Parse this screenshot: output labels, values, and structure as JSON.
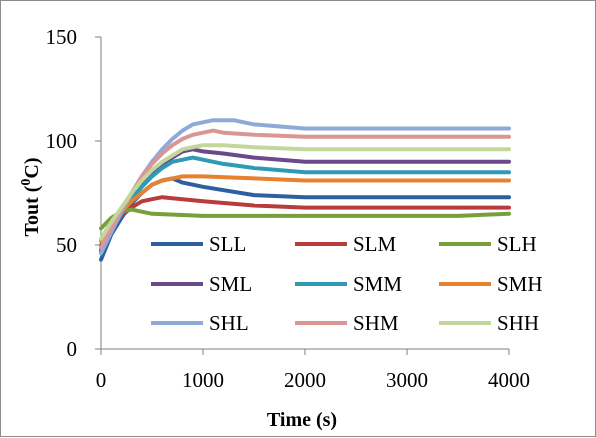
{
  "chart_data": {
    "type": "line",
    "xlabel": "Time (s)",
    "ylabel_main": "Tout (",
    "ylabel_sup": "0",
    "ylabel_end": "C)",
    "xlim": [
      0,
      4000
    ],
    "ylim": [
      0,
      150
    ],
    "xticks": [
      0,
      1000,
      2000,
      3000,
      4000
    ],
    "yticks": [
      0,
      50,
      100,
      150
    ],
    "grid": false,
    "legend_position": "lower-center",
    "series": [
      {
        "name": "SLL",
        "color": "#2e5f9f",
        "x": [
          0,
          100,
          200,
          300,
          400,
          500,
          600,
          700,
          800,
          1000,
          1500,
          2000,
          2500,
          3000,
          3500,
          4000
        ],
        "y": [
          43,
          55,
          63,
          70,
          75,
          79,
          81,
          82,
          80,
          78,
          74,
          73,
          73,
          73,
          73,
          73
        ]
      },
      {
        "name": "SLM",
        "color": "#b83c3a",
        "x": [
          0,
          100,
          200,
          300,
          400,
          500,
          600,
          800,
          1000,
          1500,
          2000,
          2500,
          3000,
          3500,
          4000
        ],
        "y": [
          50,
          58,
          64,
          68,
          71,
          72,
          73,
          72,
          71,
          69,
          68,
          68,
          68,
          68,
          68
        ]
      },
      {
        "name": "SLH",
        "color": "#77a03a",
        "x": [
          0,
          100,
          200,
          300,
          400,
          500,
          1000,
          1500,
          2000,
          2500,
          3000,
          3500,
          4000
        ],
        "y": [
          58,
          63,
          66,
          67,
          66,
          65,
          64,
          64,
          64,
          64,
          64,
          64,
          65
        ]
      },
      {
        "name": "SML",
        "color": "#6a4a8c",
        "x": [
          0,
          100,
          200,
          300,
          400,
          500,
          600,
          700,
          800,
          900,
          1000,
          1200,
          1500,
          2000,
          2500,
          3000,
          3500,
          4000
        ],
        "y": [
          47,
          56,
          65,
          73,
          79,
          85,
          89,
          92,
          95,
          96,
          95,
          94,
          92,
          90,
          90,
          90,
          90,
          90
        ]
      },
      {
        "name": "SMM",
        "color": "#2f9ab5",
        "x": [
          0,
          100,
          200,
          300,
          400,
          500,
          600,
          700,
          800,
          900,
          1000,
          1200,
          1500,
          2000,
          2500,
          3000,
          3500,
          4000
        ],
        "y": [
          48,
          57,
          65,
          72,
          78,
          83,
          87,
          90,
          91,
          92,
          91,
          89,
          87,
          85,
          85,
          85,
          85,
          85
        ]
      },
      {
        "name": "SMH",
        "color": "#e5812f",
        "x": [
          0,
          100,
          200,
          300,
          400,
          500,
          600,
          700,
          800,
          1000,
          1500,
          2000,
          2500,
          3000,
          3500,
          4000
        ],
        "y": [
          52,
          60,
          66,
          71,
          75,
          79,
          81,
          82,
          83,
          83,
          82,
          81,
          81,
          81,
          81,
          81
        ]
      },
      {
        "name": "SHL",
        "color": "#8fa9d8",
        "x": [
          0,
          100,
          200,
          300,
          400,
          500,
          600,
          700,
          800,
          900,
          1000,
          1100,
          1200,
          1300,
          1500,
          2000,
          2500,
          3000,
          3500,
          4000
        ],
        "y": [
          46,
          56,
          66,
          75,
          83,
          90,
          96,
          101,
          105,
          108,
          109,
          110,
          110,
          110,
          108,
          106,
          106,
          106,
          106,
          106
        ]
      },
      {
        "name": "SHM",
        "color": "#d99694",
        "x": [
          0,
          100,
          200,
          300,
          400,
          500,
          600,
          700,
          800,
          900,
          1000,
          1100,
          1200,
          1500,
          2000,
          2500,
          3000,
          3500,
          4000
        ],
        "y": [
          49,
          58,
          67,
          75,
          83,
          89,
          94,
          98,
          101,
          103,
          104,
          105,
          104,
          103,
          102,
          102,
          102,
          102,
          102
        ]
      },
      {
        "name": "SHH",
        "color": "#c3d69b",
        "x": [
          0,
          100,
          200,
          300,
          400,
          500,
          600,
          700,
          800,
          900,
          1000,
          1100,
          1200,
          1500,
          2000,
          2500,
          3000,
          3500,
          4000
        ],
        "y": [
          53,
          61,
          68,
          75,
          81,
          86,
          90,
          93,
          96,
          97,
          98,
          98,
          98,
          97,
          96,
          96,
          96,
          96,
          96
        ]
      }
    ]
  }
}
